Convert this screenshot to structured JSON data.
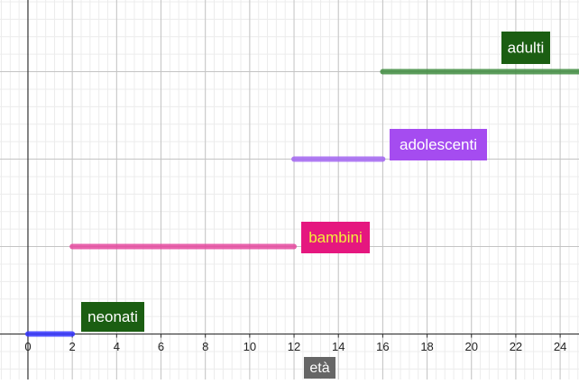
{
  "chart_data": {
    "type": "segment",
    "x_label": "età",
    "xlim": [
      -1.26,
      24.85
    ],
    "xticks": [
      0,
      2,
      4,
      6,
      8,
      10,
      12,
      14,
      16,
      18,
      20,
      22,
      24
    ],
    "ylim": [
      -0.52,
      3.82
    ],
    "grid": true,
    "series": [
      {
        "name": "neonati",
        "color": "#3333ff",
        "label_color": "#1b5e12",
        "text_color": "#ffffff",
        "x": [
          0,
          2
        ],
        "y": 0
      },
      {
        "name": "bambini",
        "color": "#e5489e",
        "label_color": "#e5177f",
        "text_color": "#f4f03a",
        "x": [
          2,
          12
        ],
        "y": 1
      },
      {
        "name": "adolescenti",
        "color": "#a366f2",
        "label_color": "#a54cf0",
        "text_color": "#ffffff",
        "x": [
          12,
          16
        ],
        "y": 2
      },
      {
        "name": "adulti",
        "color": "#3f8b3f",
        "label_color": "#1b5e12",
        "text_color": "#ffffff",
        "x": [
          16,
          25
        ],
        "y": 3
      }
    ]
  }
}
